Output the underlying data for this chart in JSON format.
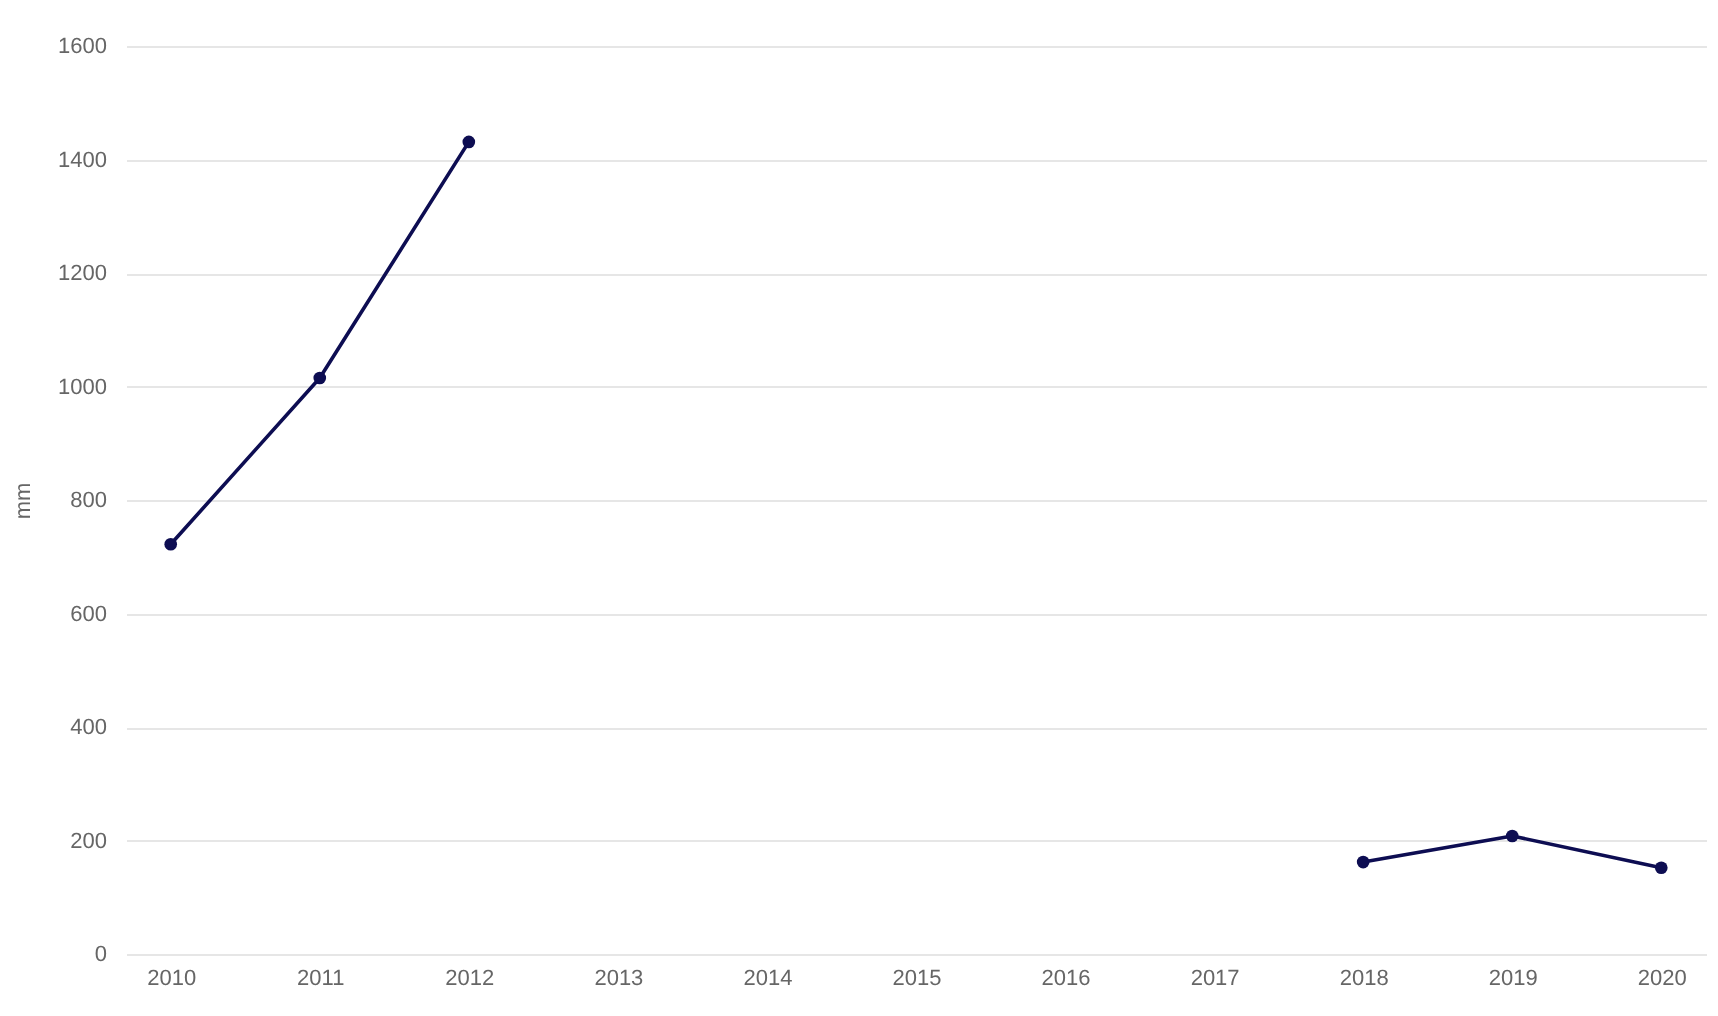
{
  "chart_data": {
    "type": "line",
    "ylabel": "mm",
    "categories": [
      "2010",
      "2011",
      "2012",
      "2013",
      "2014",
      "2015",
      "2016",
      "2017",
      "2018",
      "2019",
      "2020"
    ],
    "series": [
      {
        "color": "#0d0d52",
        "values": [
          722,
          1015,
          1431,
          null,
          null,
          null,
          null,
          null,
          162,
          208,
          152
        ]
      }
    ],
    "ylim": [
      0,
      1600
    ],
    "yticks": [
      0,
      200,
      400,
      600,
      800,
      1000,
      1200,
      1400,
      1600
    ],
    "grid": "y",
    "marker": "circle",
    "legend": false
  }
}
